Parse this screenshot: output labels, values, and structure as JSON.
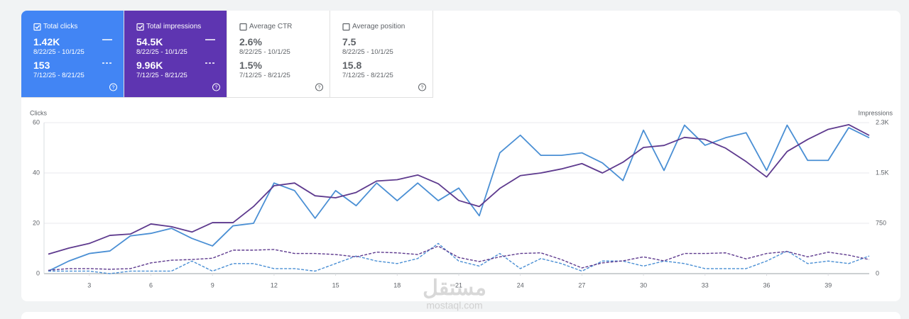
{
  "metrics": [
    {
      "label": "Total clicks",
      "checked": true,
      "color": "#4285f4",
      "current": {
        "value": "1.42K",
        "range": "8/22/25 - 10/1/25"
      },
      "previous": {
        "value": "153",
        "range": "7/12/25 - 8/21/25"
      }
    },
    {
      "label": "Total impressions",
      "checked": true,
      "color": "#5e35b1",
      "current": {
        "value": "54.5K",
        "range": "8/22/25 - 10/1/25"
      },
      "previous": {
        "value": "9.96K",
        "range": "7/12/25 - 8/21/25"
      }
    },
    {
      "label": "Average CTR",
      "checked": false,
      "color": "#ffffff",
      "current": {
        "value": "2.6%",
        "range": "8/22/25 - 10/1/25"
      },
      "previous": {
        "value": "1.5%",
        "range": "7/12/25 - 8/21/25"
      }
    },
    {
      "label": "Average position",
      "checked": false,
      "color": "#ffffff",
      "current": {
        "value": "7.5",
        "range": "8/22/25 - 10/1/25"
      },
      "previous": {
        "value": "15.8",
        "range": "7/12/25 - 8/21/25"
      }
    }
  ],
  "chart_data": {
    "type": "line",
    "y_label": "Clicks",
    "y2_label": "Impressions",
    "x": [
      1,
      2,
      3,
      4,
      5,
      6,
      7,
      8,
      9,
      10,
      11,
      12,
      13,
      14,
      15,
      16,
      17,
      18,
      19,
      20,
      21,
      22,
      23,
      24,
      25,
      26,
      27,
      28,
      29,
      30,
      31,
      32,
      33,
      34,
      35,
      36,
      37,
      38,
      39,
      40,
      41
    ],
    "xlim": [
      1,
      41
    ],
    "xticks": [
      3,
      6,
      9,
      12,
      15,
      18,
      21,
      24,
      27,
      30,
      33,
      36,
      39
    ],
    "ylim": [
      0,
      60
    ],
    "yticks": [
      0,
      20,
      40,
      60
    ],
    "y2lim": [
      0,
      2250
    ],
    "y2ticks": [
      0,
      750,
      {
        "value": 1500,
        "label": "1.5K"
      },
      {
        "value": 2250,
        "label": "2.3K"
      }
    ],
    "grid": true,
    "series": [
      {
        "color": "#4a8fd4",
        "dashed": false,
        "axis": "y",
        "values": [
          1,
          5,
          8,
          9,
          15,
          16,
          18,
          14,
          11,
          19,
          20,
          36,
          33,
          22,
          33,
          27,
          36,
          29,
          36,
          29,
          34,
          23,
          48,
          55,
          47,
          47,
          48,
          44,
          37,
          57,
          41,
          59,
          51,
          54,
          56,
          41,
          59,
          45,
          45,
          58,
          54
        ]
      },
      {
        "color": "#5e3a8e",
        "dashed": false,
        "axis": "y2",
        "values": [
          290,
          380,
          450,
          570,
          590,
          740,
          700,
          620,
          760,
          760,
          1000,
          1310,
          1350,
          1160,
          1130,
          1210,
          1380,
          1400,
          1470,
          1340,
          1090,
          1000,
          1270,
          1460,
          1500,
          1560,
          1640,
          1500,
          1660,
          1880,
          1910,
          2030,
          2000,
          1870,
          1670,
          1440,
          1820,
          2000,
          2150,
          2220,
          2060
        ]
      },
      {
        "color": "#4a8fd4",
        "dashed": true,
        "axis": "y",
        "values": [
          1,
          1,
          1,
          0,
          1,
          1,
          1,
          5,
          1,
          4,
          4,
          2,
          2,
          1,
          4,
          7,
          5,
          4,
          6,
          12,
          5,
          3,
          8,
          2,
          6,
          4,
          1,
          5,
          5,
          3,
          5,
          4,
          2,
          2,
          2,
          5,
          9,
          4,
          5,
          4,
          7
        ]
      },
      {
        "color": "#5e3a8e",
        "dashed": true,
        "axis": "y2",
        "values": [
          50,
          75,
          75,
          65,
          75,
          160,
          200,
          210,
          230,
          350,
          350,
          360,
          300,
          300,
          285,
          250,
          320,
          310,
          285,
          410,
          240,
          180,
          250,
          300,
          310,
          210,
          85,
          160,
          190,
          250,
          190,
          300,
          300,
          310,
          220,
          300,
          330,
          250,
          320,
          275,
          210
        ]
      }
    ]
  },
  "watermark": {
    "text": "مستقل",
    "url": "mostaql.com"
  }
}
